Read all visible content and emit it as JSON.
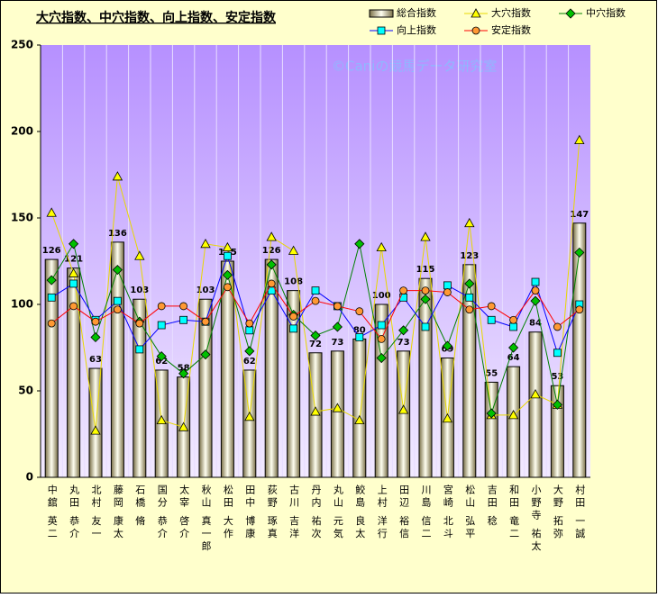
{
  "chart_data": {
    "type": "bar",
    "title": "大穴指数、中穴指数、向上指数、安定指数",
    "watermark": "©Caniの競馬データ研究室",
    "categories": [
      "中舘 英二",
      "丸田 恭介",
      "北村 友一",
      "藤岡 康太",
      "石橋 脩",
      "国分 恭介",
      "太宰 啓介",
      "秋山 真一郎",
      "松田 大作",
      "田中 博康",
      "荻野 琢真",
      "古川 吉洋",
      "丹内 祐次",
      "丸山 元気",
      "鮫島 良太",
      "上村 洋行",
      "田辺 裕信",
      "川島 信二",
      "宮崎 北斗",
      "松山 弘平",
      "吉田 稔",
      "和田 竜二",
      "小野寺 祐太",
      "大野 拓弥",
      "村田 一誠"
    ],
    "series": [
      {
        "name": "総合指数",
        "kind": "bar",
        "color": "#8a8058",
        "values": [
          126,
          121,
          63,
          136,
          103,
          62,
          58,
          103,
          125,
          62,
          126,
          108,
          72,
          73,
          80,
          100,
          73,
          115,
          69,
          123,
          55,
          64,
          84,
          53,
          147
        ]
      },
      {
        "name": "大穴指数",
        "kind": "line",
        "marker": "triangle",
        "color": "#ffff00",
        "line_color": "#e8d800",
        "values": [
          153,
          118,
          27,
          174,
          128,
          33,
          29,
          135,
          133,
          35,
          139,
          131,
          38,
          40,
          33,
          133,
          39,
          139,
          34,
          147,
          36,
          36,
          48,
          42,
          195
        ]
      },
      {
        "name": "中穴指数",
        "kind": "line",
        "marker": "diamond",
        "color": "#00c000",
        "line_color": "#008000",
        "values": [
          114,
          135,
          81,
          120,
          90,
          70,
          60,
          71,
          117,
          73,
          123,
          94,
          82,
          87,
          135,
          69,
          85,
          103,
          76,
          112,
          37,
          75,
          102,
          42,
          130
        ]
      },
      {
        "name": "向上指数",
        "kind": "line",
        "marker": "square",
        "color": "#00ffff",
        "line_color": "#0000ff",
        "values": [
          104,
          112,
          91,
          102,
          74,
          88,
          91,
          90,
          128,
          85,
          108,
          86,
          108,
          99,
          81,
          88,
          104,
          87,
          111,
          104,
          91,
          87,
          113,
          72,
          100
        ]
      },
      {
        "name": "安定指数",
        "kind": "line",
        "marker": "circle",
        "color": "#ff9933",
        "line_color": "#ff0000",
        "values": [
          89,
          99,
          90,
          97,
          89,
          99,
          99,
          90,
          110,
          89,
          112,
          93,
          102,
          99,
          96,
          80,
          108,
          108,
          107,
          97,
          99,
          91,
          108,
          87,
          97
        ]
      }
    ],
    "ylim": [
      0,
      250
    ],
    "yticks": [
      0,
      50,
      100,
      150,
      200,
      250
    ]
  }
}
